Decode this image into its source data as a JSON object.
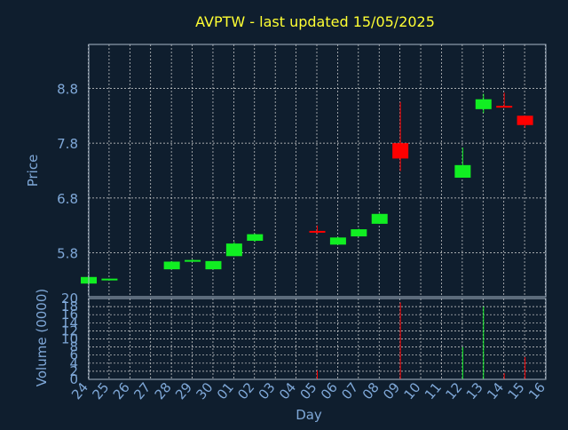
{
  "colors": {
    "background": "#0f1e2e",
    "title": "#ffff33",
    "axis_text": "#7fa8d8",
    "frame": "#aab8c8",
    "grid": "#d8d8d8",
    "up": "#11ee22",
    "down": "#ff0000"
  },
  "chart_data": {
    "title": "AVPTW - last updated 15/05/2025",
    "price_panel": {
      "type": "candlestick",
      "ylabel": "Price",
      "ylim": [
        5.0,
        9.6
      ],
      "yticks": [
        "5.8",
        "6.8",
        "7.8",
        "8.8"
      ],
      "grid": true,
      "candles": [
        {
          "day": "24",
          "open": 5.24,
          "high": 5.4,
          "low": 5.2,
          "close": 5.36
        },
        {
          "day": "25",
          "open": 5.3,
          "high": 5.33,
          "low": 5.3,
          "close": 5.33
        },
        {
          "day": "28",
          "open": 5.5,
          "high": 5.65,
          "low": 5.5,
          "close": 5.64
        },
        {
          "day": "29",
          "open": 5.65,
          "high": 5.68,
          "low": 5.65,
          "close": 5.67
        },
        {
          "day": "30",
          "open": 5.5,
          "high": 5.65,
          "low": 5.5,
          "close": 5.65
        },
        {
          "day": "01",
          "open": 5.74,
          "high": 6.0,
          "low": 5.74,
          "close": 5.97
        },
        {
          "day": "02",
          "open": 6.02,
          "high": 6.15,
          "low": 6.0,
          "close": 6.14
        },
        {
          "day": "05",
          "open": 6.2,
          "high": 6.3,
          "low": 6.15,
          "close": 6.17
        },
        {
          "day": "06",
          "open": 5.95,
          "high": 6.09,
          "low": 5.95,
          "close": 6.08
        },
        {
          "day": "07",
          "open": 6.1,
          "high": 6.24,
          "low": 6.1,
          "close": 6.23
        },
        {
          "day": "08",
          "open": 6.33,
          "high": 6.52,
          "low": 6.33,
          "close": 6.51
        },
        {
          "day": "09",
          "open": 7.8,
          "high": 8.55,
          "low": 7.29,
          "close": 7.52
        },
        {
          "day": "12",
          "open": 7.17,
          "high": 7.72,
          "low": 7.17,
          "close": 7.4
        },
        {
          "day": "13",
          "open": 8.42,
          "high": 8.7,
          "low": 8.35,
          "close": 8.6
        },
        {
          "day": "14",
          "open": 8.48,
          "high": 8.72,
          "low": 8.45,
          "close": 8.45
        },
        {
          "day": "15",
          "open": 8.3,
          "high": 8.3,
          "low": 8.08,
          "close": 8.13
        }
      ]
    },
    "volume_panel": {
      "type": "bar",
      "ylabel": "Volume (0000)",
      "ylim": [
        0,
        20
      ],
      "yticks": [
        "0",
        "2",
        "4",
        "6",
        "8",
        "10",
        "12",
        "14",
        "16",
        "18",
        "20"
      ],
      "bars": [
        {
          "day": "05",
          "value": 2.2,
          "direction": "down"
        },
        {
          "day": "09",
          "value": 19.0,
          "direction": "down"
        },
        {
          "day": "12",
          "value": 8.0,
          "direction": "up"
        },
        {
          "day": "13",
          "value": 18.0,
          "direction": "up"
        },
        {
          "day": "14",
          "value": 1.5,
          "direction": "down"
        },
        {
          "day": "15",
          "value": 5.5,
          "direction": "down"
        }
      ]
    },
    "xlabel": "Day",
    "x_categories": [
      "24",
      "25",
      "26",
      "27",
      "28",
      "29",
      "30",
      "01",
      "02",
      "03",
      "04",
      "05",
      "06",
      "07",
      "08",
      "09",
      "10",
      "11",
      "12",
      "13",
      "14",
      "15",
      "16"
    ]
  }
}
